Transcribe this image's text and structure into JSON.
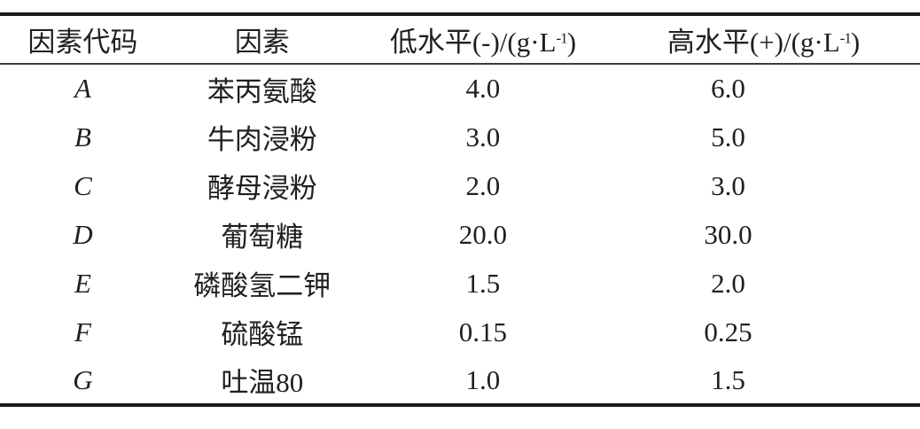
{
  "table": {
    "columns": [
      {
        "label": "因素代码"
      },
      {
        "label": "因素"
      },
      {
        "label_prefix": "低水平(-)/(g·L",
        "label_sup": "-1",
        "label_suffix": ")"
      },
      {
        "label_prefix": "高水平(+)/(g·L",
        "label_sup": "-1",
        "label_suffix": ")"
      }
    ],
    "rows": [
      {
        "code": "A",
        "factor": "苯丙氨酸",
        "low": "4.0",
        "high": "6.0"
      },
      {
        "code": "B",
        "factor": "牛肉浸粉",
        "low": "3.0",
        "high": "5.0"
      },
      {
        "code": "C",
        "factor": "酵母浸粉",
        "low": "2.0",
        "high": "3.0"
      },
      {
        "code": "D",
        "factor": "葡萄糖",
        "low": "20.0",
        "high": "30.0"
      },
      {
        "code": "E",
        "factor": "磷酸氢二钾",
        "low": "1.5",
        "high": "2.0"
      },
      {
        "code": "F",
        "factor": "硫酸锰",
        "low": "0.15",
        "high": "0.25"
      },
      {
        "code": "G",
        "factor": "吐温80",
        "low": "1.0",
        "high": "1.5"
      }
    ],
    "colors": {
      "text": "#1f1f1f",
      "rule_heavy": "#1a1a1a",
      "rule_light": "#3c3c3c",
      "background": "#ffffff"
    }
  }
}
